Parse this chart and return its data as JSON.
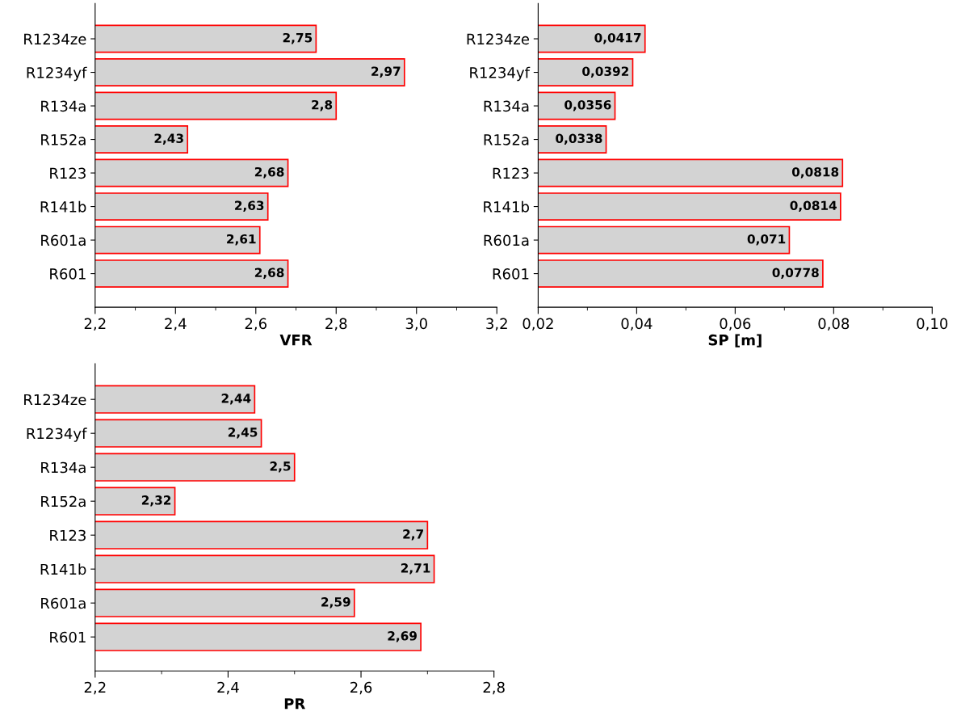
{
  "chart_data": [
    {
      "type": "bar",
      "orientation": "horizontal",
      "xlabel": "VFR",
      "categories": [
        "R1234ze",
        "R1234yf",
        "R134a",
        "R152a",
        "R123",
        "R141b",
        "R601a",
        "R601"
      ],
      "series": [
        {
          "color": "#d3d3d3",
          "values": [
            2.75,
            2.97,
            2.8,
            2.43,
            2.68,
            2.63,
            2.61,
            2.68
          ],
          "value_labels": [
            "2,75",
            "2,97",
            "2,8",
            "2,43",
            "2,68",
            "2,63",
            "2,61",
            "2,68"
          ]
        }
      ],
      "xlim": [
        2.2,
        3.2
      ],
      "xticks": [
        {
          "value": 2.2,
          "label": "2,2"
        },
        {
          "value": 2.4,
          "label": "2,4"
        },
        {
          "value": 2.6,
          "label": "2,6"
        },
        {
          "value": 2.8,
          "label": "2,8"
        },
        {
          "value": 3.0,
          "label": "3,0"
        },
        {
          "value": 3.2,
          "label": "3,2"
        }
      ],
      "grid": false,
      "legend": false
    },
    {
      "type": "bar",
      "orientation": "horizontal",
      "xlabel": "SP [m]",
      "categories": [
        "R1234ze",
        "R1234yf",
        "R134a",
        "R152a",
        "R123",
        "R141b",
        "R601a",
        "R601"
      ],
      "series": [
        {
          "color": "#d3d3d3",
          "values": [
            0.0417,
            0.0392,
            0.0356,
            0.0338,
            0.0818,
            0.0814,
            0.071,
            0.0778
          ],
          "value_labels": [
            "0,0417",
            "0,0392",
            "0,0356",
            "0,0338",
            "0,0818",
            "0,0814",
            "0,071",
            "0,0778"
          ]
        }
      ],
      "xlim": [
        0.02,
        0.1
      ],
      "xticks": [
        {
          "value": 0.02,
          "label": "0,02"
        },
        {
          "value": 0.04,
          "label": "0,04"
        },
        {
          "value": 0.06,
          "label": "0,06"
        },
        {
          "value": 0.08,
          "label": "0,08"
        },
        {
          "value": 0.1,
          "label": "0,10"
        }
      ],
      "grid": false,
      "legend": false
    },
    {
      "type": "bar",
      "orientation": "horizontal",
      "xlabel": "PR",
      "categories": [
        "R1234ze",
        "R1234yf",
        "R134a",
        "R152a",
        "R123",
        "R141b",
        "R601a",
        "R601"
      ],
      "series": [
        {
          "color": "#d3d3d3",
          "values": [
            2.44,
            2.45,
            2.5,
            2.32,
            2.7,
            2.71,
            2.59,
            2.69
          ],
          "value_labels": [
            "2,44",
            "2,45",
            "2,5",
            "2,32",
            "2,7",
            "2,71",
            "2,59",
            "2,69"
          ]
        }
      ],
      "xlim": [
        2.2,
        2.8
      ],
      "xticks": [
        {
          "value": 2.2,
          "label": "2,2"
        },
        {
          "value": 2.4,
          "label": "2,4"
        },
        {
          "value": 2.6,
          "label": "2,6"
        },
        {
          "value": 2.8,
          "label": "2,8"
        }
      ],
      "grid": false,
      "legend": false
    }
  ]
}
